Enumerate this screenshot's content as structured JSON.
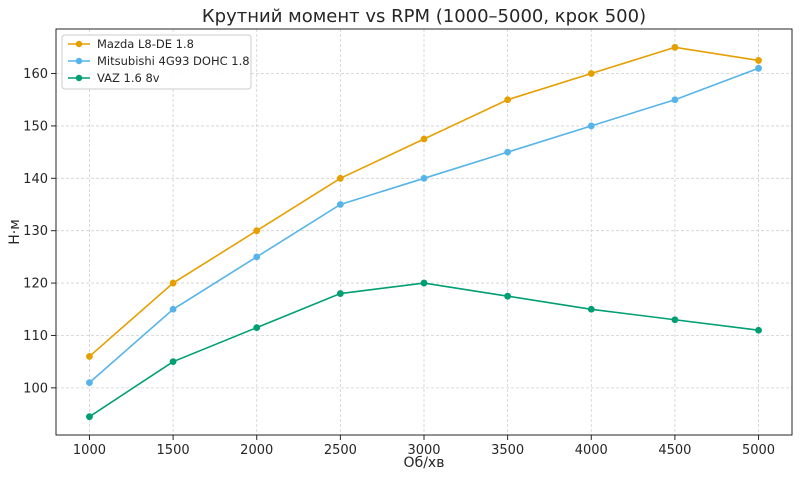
{
  "chart_data": {
    "type": "line",
    "title": "Крутний момент vs RPM (1000–5000, крок 500)",
    "xlabel": "Об/хв",
    "ylabel": "Н·м",
    "x": [
      1000,
      1500,
      2000,
      2500,
      3000,
      3500,
      4000,
      4500,
      5000
    ],
    "xlim": [
      800,
      5200
    ],
    "ylim": [
      91,
      168.5
    ],
    "xticks": [
      "1000",
      "1500",
      "2000",
      "2500",
      "3000",
      "3500",
      "4000",
      "4500",
      "5000"
    ],
    "yticks": [
      "100",
      "110",
      "120",
      "130",
      "140",
      "150",
      "160"
    ],
    "grid": true,
    "legend_position": "top-left",
    "series": [
      {
        "name": "Mazda L8-DE 1.8",
        "color": "#E69F00",
        "values": [
          106,
          120,
          130,
          140,
          147.5,
          155,
          160,
          165,
          162.5
        ]
      },
      {
        "name": "Mitsubishi 4G93 DOHC 1.8",
        "color": "#56B4E9",
        "values": [
          101,
          115,
          125,
          135,
          140,
          145,
          150,
          155,
          161
        ]
      },
      {
        "name": "VAZ 1.6 8v",
        "color": "#009E73",
        "values": [
          94.5,
          105,
          111.5,
          118,
          120,
          117.5,
          115,
          113,
          111
        ]
      }
    ]
  }
}
